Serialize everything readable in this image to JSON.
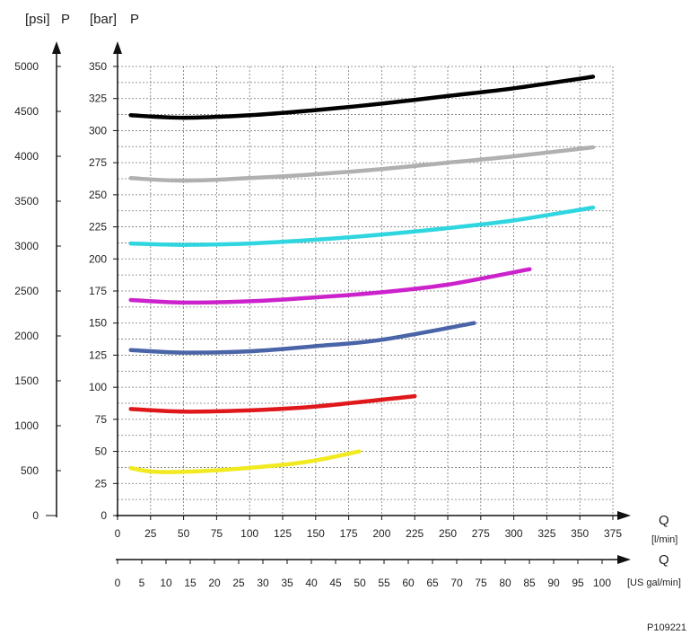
{
  "chart_data": {
    "type": "line",
    "title": "",
    "y_primary": {
      "label": "P",
      "unit": "[bar]",
      "range": [
        0,
        350
      ],
      "ticks": [
        0,
        25,
        50,
        75,
        100,
        125,
        150,
        175,
        200,
        225,
        250,
        275,
        300,
        325,
        350
      ]
    },
    "y_secondary": {
      "label": "P",
      "unit": "[psi]",
      "range": [
        0,
        5000
      ],
      "ticks": [
        0,
        500,
        1000,
        1500,
        2000,
        2500,
        3000,
        3500,
        4000,
        4500,
        5000
      ]
    },
    "x_primary": {
      "label": "Q",
      "unit": "[l/min]",
      "range": [
        0,
        375
      ],
      "ticks": [
        0,
        25,
        50,
        75,
        100,
        125,
        150,
        175,
        200,
        225,
        250,
        275,
        300,
        325,
        350,
        375
      ]
    },
    "x_secondary": {
      "label": "Q",
      "unit": "[US gal/min]",
      "range": [
        0,
        100
      ],
      "ticks": [
        0,
        5,
        10,
        15,
        20,
        25,
        30,
        35,
        40,
        45,
        50,
        55,
        60,
        65,
        70,
        75,
        80,
        85,
        90,
        95,
        100
      ]
    },
    "grid": true,
    "series": [
      {
        "color": "#000000",
        "points": [
          [
            10,
            312
          ],
          [
            50,
            310
          ],
          [
            100,
            312
          ],
          [
            150,
            316
          ],
          [
            200,
            321
          ],
          [
            250,
            327
          ],
          [
            300,
            333
          ],
          [
            360,
            342
          ]
        ]
      },
      {
        "color": "#b0b0b0",
        "points": [
          [
            10,
            263
          ],
          [
            50,
            261
          ],
          [
            100,
            263
          ],
          [
            150,
            266
          ],
          [
            200,
            270
          ],
          [
            250,
            275
          ],
          [
            300,
            280
          ],
          [
            360,
            287
          ]
        ]
      },
      {
        "color": "#2fd6e0",
        "points": [
          [
            10,
            212
          ],
          [
            50,
            211
          ],
          [
            100,
            212
          ],
          [
            150,
            215
          ],
          [
            200,
            219
          ],
          [
            250,
            224
          ],
          [
            300,
            230
          ],
          [
            360,
            240
          ]
        ]
      },
      {
        "color": "#cc22cc",
        "points": [
          [
            10,
            168
          ],
          [
            50,
            166
          ],
          [
            100,
            167
          ],
          [
            150,
            170
          ],
          [
            200,
            174
          ],
          [
            250,
            180
          ],
          [
            312,
            192
          ]
        ]
      },
      {
        "color": "#4a64a8",
        "points": [
          [
            10,
            129
          ],
          [
            50,
            127
          ],
          [
            100,
            128
          ],
          [
            150,
            132
          ],
          [
            200,
            137
          ],
          [
            270,
            150
          ]
        ]
      },
      {
        "color": "#e0181c",
        "points": [
          [
            10,
            83
          ],
          [
            50,
            81
          ],
          [
            100,
            82
          ],
          [
            150,
            85
          ],
          [
            225,
            93
          ]
        ]
      },
      {
        "color": "#f2ea20",
        "points": [
          [
            10,
            37
          ],
          [
            30,
            34
          ],
          [
            70,
            35
          ],
          [
            120,
            39
          ],
          [
            150,
            43
          ],
          [
            183,
            50
          ]
        ]
      }
    ]
  },
  "reference_code": "P109221"
}
